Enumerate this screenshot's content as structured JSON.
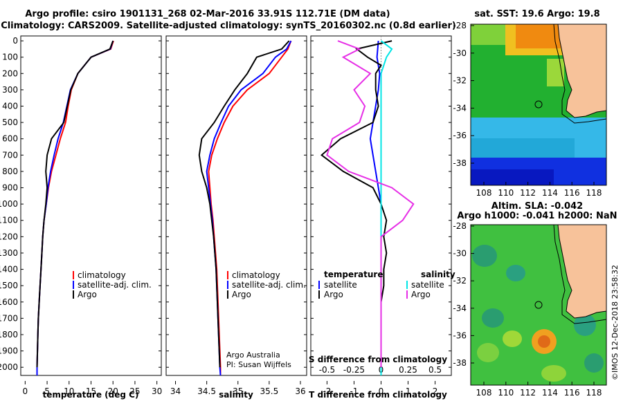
{
  "header": {
    "line1": "Argo profile: csiro 1901131_268 02-Mar-2016 33.91S 112.71E (DM data)",
    "line2": "Climatology: CARS2009. Satellite-adjusted climatology: synTS_20160302.nc (0.8d earlier)"
  },
  "depth_ticks": [
    0,
    100,
    200,
    300,
    400,
    500,
    600,
    700,
    800,
    900,
    1000,
    1100,
    1200,
    1300,
    1400,
    1500,
    1600,
    1700,
    1800,
    1900,
    2000
  ],
  "colors": {
    "climatology": "#ff0000",
    "satellite": "#0000ff",
    "argo": "#000000",
    "sat_salinity": "#00e5e5",
    "argo_salinity": "#e62ee6",
    "land": "#f7c29a"
  },
  "temp_panel": {
    "xlabel": "temperature (deg C)",
    "xticks": [
      "0",
      "5",
      "10",
      "15",
      "20",
      "25",
      "30"
    ],
    "legend": [
      "climatology",
      "satellite-adj. clim.",
      "Argo"
    ]
  },
  "sal_panel": {
    "xlabel": "salinity",
    "xticks": [
      "34",
      "34.5",
      "35",
      "35.5",
      "36"
    ],
    "legend": [
      "climatology",
      "satellite-adj. clim.",
      "Argo"
    ],
    "credit1": "Argo Australia",
    "credit2": "PI: Susan Wijffels"
  },
  "diff_panel": {
    "xlabel": "T difference from climatology",
    "xticks": [
      "-2",
      "-1",
      "0",
      "1",
      "2"
    ],
    "s_label": "S difference from climatology",
    "s_ticks": [
      "-0.5",
      "-0.25",
      "0",
      "0.25",
      "0.5"
    ],
    "legend_t_title": "temperature",
    "legend_s_title": "salinity",
    "legend_t": [
      "satellite",
      "Argo"
    ],
    "legend_s": [
      "satellite",
      "Argo"
    ]
  },
  "sst_map": {
    "title": "sat. SST: 19.6  Argo: 19.8",
    "lat_ticks": [
      "-28",
      "-30",
      "-32",
      "-34",
      "-36",
      "-38"
    ],
    "lon_ticks": [
      "108",
      "110",
      "112",
      "114",
      "116",
      "118"
    ]
  },
  "sla_map": {
    "title1": "Altim. SLA: -0.042",
    "title2": "Argo h1000: -0.041 h2000: NaN",
    "lat_ticks": [
      "-28",
      "-30",
      "-32",
      "-34",
      "-36",
      "-38"
    ],
    "lon_ticks": [
      "108",
      "110",
      "112",
      "114",
      "116",
      "118"
    ]
  },
  "footer": {
    "stamp": "©IMOS 12-Dec-2018 23:58:32"
  },
  "chart_data": [
    {
      "type": "line",
      "xlabel": "temperature (deg C)",
      "ylabel": "",
      "xlim": [
        -1,
        31
      ],
      "ylim": [
        2050,
        -30
      ],
      "series": [
        {
          "name": "climatology",
          "points": [
            [
              20.1,
              0
            ],
            [
              19.5,
              50
            ],
            [
              15,
              100
            ],
            [
              12,
              200
            ],
            [
              10.5,
              300
            ],
            [
              9.8,
              400
            ],
            [
              9.2,
              500
            ],
            [
              8,
              600
            ],
            [
              7,
              700
            ],
            [
              6,
              800
            ],
            [
              5.3,
              900
            ],
            [
              4.8,
              1000
            ],
            [
              4.3,
              1100
            ],
            [
              4,
              1200
            ],
            [
              3.8,
              1300
            ],
            [
              3.6,
              1400
            ],
            [
              3.4,
              1500
            ],
            [
              3.2,
              1600
            ],
            [
              3.0,
              1700
            ],
            [
              2.9,
              1800
            ],
            [
              2.8,
              1900
            ],
            [
              2.7,
              2000
            ],
            [
              2.7,
              2050
            ]
          ]
        },
        {
          "name": "satellite-adj. clim.",
          "points": [
            [
              20,
              0
            ],
            [
              19.4,
              50
            ],
            [
              15,
              100
            ],
            [
              12,
              200
            ],
            [
              10.3,
              300
            ],
            [
              9.5,
              400
            ],
            [
              8.7,
              500
            ],
            [
              7.5,
              600
            ],
            [
              6.6,
              700
            ],
            [
              5.8,
              800
            ],
            [
              5.2,
              900
            ],
            [
              4.8,
              1000
            ],
            [
              4.3,
              1100
            ],
            [
              4,
              1200
            ],
            [
              3.8,
              1300
            ],
            [
              3.6,
              1400
            ],
            [
              3.4,
              1500
            ],
            [
              3.2,
              1600
            ],
            [
              3.0,
              1700
            ],
            [
              2.9,
              1800
            ],
            [
              2.8,
              1900
            ],
            [
              2.7,
              2000
            ],
            [
              2.7,
              2050
            ]
          ]
        },
        {
          "name": "Argo",
          "points": [
            [
              20,
              0
            ],
            [
              19.3,
              50
            ],
            [
              15,
              100
            ],
            [
              12,
              200
            ],
            [
              10.4,
              300
            ],
            [
              9.6,
              400
            ],
            [
              8.8,
              500
            ],
            [
              6,
              600
            ],
            [
              5,
              700
            ],
            [
              4.7,
              800
            ],
            [
              5,
              900
            ],
            [
              4.7,
              1000
            ],
            [
              4.3,
              1100
            ],
            [
              4,
              1200
            ],
            [
              3.8,
              1300
            ],
            [
              3.6,
              1400
            ],
            [
              3.4,
              1500
            ],
            [
              3.2,
              1600
            ],
            [
              3.0,
              1700
            ],
            [
              2.9,
              1800
            ],
            [
              2.8,
              1900
            ],
            [
              2.7,
              2000
            ]
          ]
        }
      ]
    },
    {
      "type": "line",
      "xlabel": "salinity",
      "ylabel": "",
      "xlim": [
        33.85,
        36.1
      ],
      "ylim": [
        2050,
        -30
      ],
      "series": [
        {
          "name": "climatology",
          "points": [
            [
              35.85,
              0
            ],
            [
              35.8,
              50
            ],
            [
              35.7,
              100
            ],
            [
              35.5,
              200
            ],
            [
              35.15,
              300
            ],
            [
              34.92,
              400
            ],
            [
              34.78,
              500
            ],
            [
              34.67,
              600
            ],
            [
              34.58,
              700
            ],
            [
              34.53,
              800
            ],
            [
              34.55,
              900
            ],
            [
              34.57,
              1000
            ],
            [
              34.6,
              1100
            ],
            [
              34.62,
              1200
            ],
            [
              34.64,
              1300
            ],
            [
              34.66,
              1400
            ],
            [
              34.67,
              1500
            ],
            [
              34.68,
              1600
            ],
            [
              34.69,
              1700
            ],
            [
              34.7,
              1800
            ],
            [
              34.71,
              1900
            ],
            [
              34.72,
              2000
            ],
            [
              34.72,
              2050
            ]
          ]
        },
        {
          "name": "satellite-adj. clim.",
          "points": [
            [
              35.85,
              0
            ],
            [
              35.78,
              50
            ],
            [
              35.6,
              100
            ],
            [
              35.4,
              200
            ],
            [
              35.05,
              300
            ],
            [
              34.85,
              400
            ],
            [
              34.73,
              500
            ],
            [
              34.62,
              600
            ],
            [
              34.55,
              700
            ],
            [
              34.5,
              800
            ],
            [
              34.53,
              900
            ],
            [
              34.56,
              1000
            ],
            [
              34.59,
              1100
            ],
            [
              34.61,
              1200
            ],
            [
              34.63,
              1300
            ],
            [
              34.65,
              1400
            ],
            [
              34.66,
              1500
            ],
            [
              34.67,
              1600
            ],
            [
              34.68,
              1700
            ],
            [
              34.69,
              1800
            ],
            [
              34.7,
              1900
            ],
            [
              34.71,
              2000
            ],
            [
              34.72,
              2050
            ]
          ]
        },
        {
          "name": "Argo",
          "points": [
            [
              35.82,
              0
            ],
            [
              35.7,
              50
            ],
            [
              35.3,
              100
            ],
            [
              35.15,
              200
            ],
            [
              34.95,
              300
            ],
            [
              34.78,
              400
            ],
            [
              34.62,
              500
            ],
            [
              34.42,
              600
            ],
            [
              34.38,
              700
            ],
            [
              34.42,
              800
            ],
            [
              34.5,
              900
            ],
            [
              34.55,
              1000
            ],
            [
              34.58,
              1100
            ],
            [
              34.61,
              1200
            ],
            [
              34.63,
              1300
            ],
            [
              34.65,
              1400
            ],
            [
              34.66,
              1500
            ],
            [
              34.67,
              1600
            ],
            [
              34.68,
              1700
            ],
            [
              34.69,
              1800
            ],
            [
              34.7,
              1900
            ],
            [
              34.71,
              2000
            ]
          ]
        }
      ]
    },
    {
      "type": "line",
      "xlabel": "T difference from climatology",
      "ylabel": "",
      "xlim": [
        -2.6,
        2.6
      ],
      "ylim": [
        2050,
        -30
      ],
      "series": [
        {
          "name": "temperature satellite",
          "points": [
            [
              -0.1,
              0
            ],
            [
              -0.15,
              100
            ],
            [
              -0.05,
              200
            ],
            [
              -0.1,
              300
            ],
            [
              -0.2,
              400
            ],
            [
              -0.3,
              500
            ],
            [
              -0.4,
              600
            ],
            [
              -0.3,
              700
            ],
            [
              -0.2,
              800
            ],
            [
              -0.1,
              900
            ],
            [
              0,
              1000
            ],
            [
              0,
              1100
            ],
            [
              0,
              1200
            ],
            [
              0,
              1300
            ],
            [
              0,
              1400
            ],
            [
              0,
              1500
            ],
            [
              0,
              1600
            ],
            [
              0,
              1700
            ],
            [
              0,
              1800
            ],
            [
              0,
              1900
            ],
            [
              0,
              2000
            ],
            [
              0,
              2050
            ]
          ]
        },
        {
          "name": "temperature Argo",
          "points": [
            [
              0.4,
              0
            ],
            [
              -0.9,
              50
            ],
            [
              -0.5,
              100
            ],
            [
              0,
              150
            ],
            [
              -0.2,
              200
            ],
            [
              -0.2,
              300
            ],
            [
              -0.1,
              400
            ],
            [
              -0.3,
              500
            ],
            [
              -1.5,
              600
            ],
            [
              -2.2,
              700
            ],
            [
              -1.4,
              800
            ],
            [
              -0.3,
              900
            ],
            [
              0,
              1000
            ],
            [
              0.2,
              1100
            ],
            [
              0.1,
              1200
            ],
            [
              0.2,
              1300
            ],
            [
              0.1,
              1400
            ],
            [
              0.1,
              1500
            ],
            [
              0,
              1600
            ],
            [
              0,
              1700
            ],
            [
              0,
              1800
            ],
            [
              0,
              1900
            ],
            [
              0,
              2000
            ]
          ]
        },
        {
          "name": "salinity satellite",
          "points": [
            [
              0,
              0
            ],
            [
              0.1,
              50
            ],
            [
              0.05,
              100
            ],
            [
              0,
              200
            ],
            [
              0,
              300
            ],
            [
              0,
              400
            ],
            [
              0,
              500
            ],
            [
              0,
              600
            ],
            [
              0,
              700
            ],
            [
              0,
              800
            ],
            [
              0,
              900
            ],
            [
              0,
              1000
            ],
            [
              0,
              1100
            ],
            [
              0,
              1200
            ],
            [
              0,
              1300
            ],
            [
              0,
              1400
            ],
            [
              0,
              1500
            ],
            [
              0,
              1600
            ],
            [
              0,
              1700
            ],
            [
              0,
              1800
            ],
            [
              0,
              1900
            ],
            [
              0,
              2000
            ],
            [
              0,
              2050
            ]
          ]
        },
        {
          "name": "salinity Argo",
          "points": [
            [
              -0.4,
              0
            ],
            [
              -0.2,
              50
            ],
            [
              -0.35,
              100
            ],
            [
              -0.1,
              200
            ],
            [
              -0.25,
              300
            ],
            [
              -0.15,
              400
            ],
            [
              -0.2,
              500
            ],
            [
              -0.45,
              600
            ],
            [
              -0.5,
              700
            ],
            [
              -0.3,
              800
            ],
            [
              0.1,
              900
            ],
            [
              0.3,
              1000
            ],
            [
              0.2,
              1100
            ],
            [
              0,
              1200
            ],
            [
              0,
              1300
            ],
            [
              0,
              1400
            ],
            [
              0,
              1500
            ],
            [
              0,
              1600
            ],
            [
              0,
              1700
            ],
            [
              0,
              1800
            ],
            [
              0,
              1900
            ],
            [
              0,
              2000
            ]
          ]
        }
      ]
    }
  ]
}
